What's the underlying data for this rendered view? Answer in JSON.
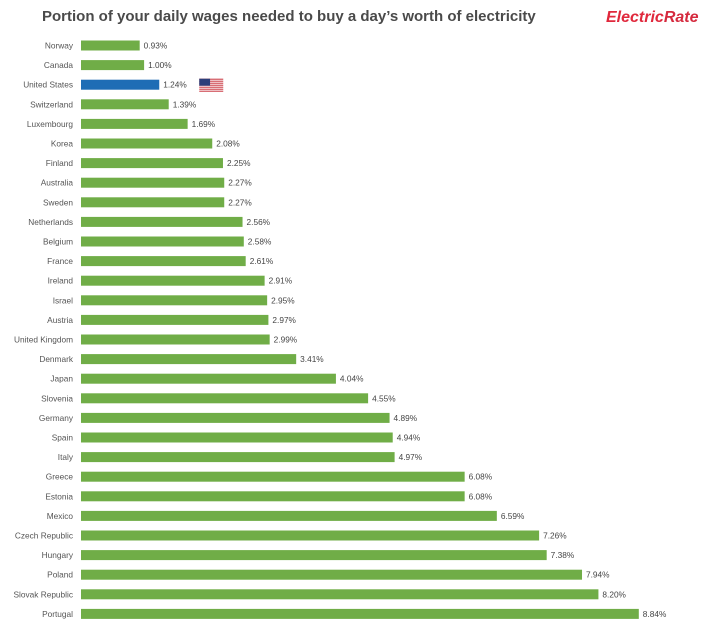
{
  "title": "Portion of your daily wages needed to buy a day’s worth of electricity",
  "brand": {
    "part1": "Electric",
    "part2": "Rate"
  },
  "colors": {
    "bar": "#70ad47",
    "highlight": "#1f6db5",
    "title": "#4a4a4a",
    "brand": "#e0283c"
  },
  "chart_data": {
    "type": "bar",
    "orientation": "horizontal",
    "title": "Portion of your daily wages needed to buy a day’s worth of electricity",
    "categories": [
      "Norway",
      "Canada",
      "United States",
      "Switzerland",
      "Luxembourg",
      "Korea",
      "Finland",
      "Australia",
      "Sweden",
      "Netherlands",
      "Belgium",
      "France",
      "Ireland",
      "Israel",
      "Austria",
      "United Kingdom",
      "Denmark",
      "Japan",
      "Slovenia",
      "Germany",
      "Spain",
      "Italy",
      "Greece",
      "Estonia",
      "Mexico",
      "Czech Republic",
      "Hungary",
      "Poland",
      "Slovak Republic",
      "Portugal"
    ],
    "values": [
      0.93,
      1.0,
      1.24,
      1.39,
      1.69,
      2.08,
      2.25,
      2.27,
      2.27,
      2.56,
      2.58,
      2.61,
      2.91,
      2.95,
      2.97,
      2.99,
      3.41,
      4.04,
      4.55,
      4.89,
      4.94,
      4.97,
      6.08,
      6.08,
      6.59,
      7.26,
      7.38,
      7.94,
      8.2,
      8.84
    ],
    "value_labels": [
      "0.93%",
      "1.00%",
      "1.24%",
      "1.39%",
      "1.69%",
      "2.08%",
      "2.25%",
      "2.27%",
      "2.27%",
      "2.56%",
      "2.58%",
      "2.61%",
      "2.91%",
      "2.95%",
      "2.97%",
      "2.99%",
      "3.41%",
      "4.04%",
      "4.55%",
      "4.89%",
      "4.94%",
      "4.97%",
      "6.08%",
      "6.08%",
      "6.59%",
      "7.26%",
      "7.38%",
      "7.94%",
      "8.20%",
      "8.84%"
    ],
    "highlight": "United States",
    "highlight_marker": "us-flag-icon",
    "xlim": [
      0,
      8.84
    ],
    "grid": false,
    "legend": "none"
  }
}
